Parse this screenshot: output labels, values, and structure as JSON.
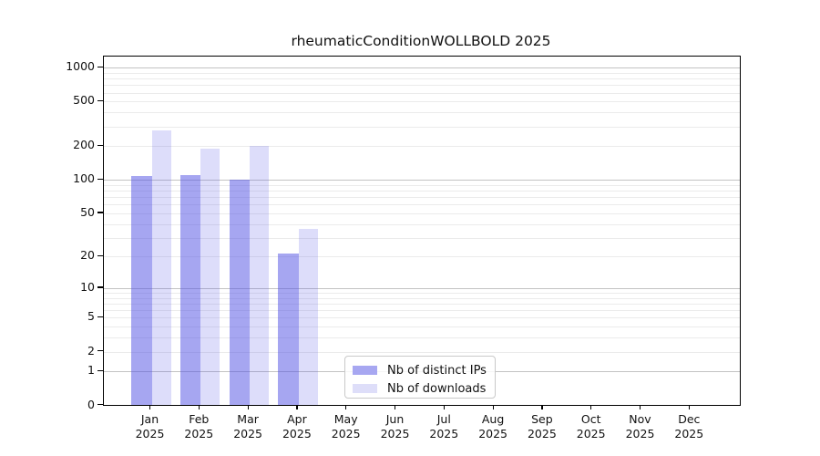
{
  "title": "rheumaticConditionWOLLBOLD 2025",
  "chart_data": {
    "type": "bar",
    "title": "rheumaticConditionWOLLBOLD 2025",
    "categories": [
      "Jan",
      "Feb",
      "Mar",
      "Apr",
      "May",
      "Jun",
      "Jul",
      "Aug",
      "Sep",
      "Oct",
      "Nov",
      "Dec"
    ],
    "category_year": "2025",
    "series": [
      {
        "name": "Nb of distinct IPs",
        "color": "#a7a7f1",
        "fill": "rgba(85,85,229,0.52)",
        "values": [
          108,
          110,
          100,
          21,
          0,
          0,
          0,
          0,
          0,
          0,
          0,
          0
        ]
      },
      {
        "name": "Nb of downloads",
        "color": "#dedef9",
        "fill": "rgba(85,85,229,0.20)",
        "values": [
          275,
          190,
          200,
          36,
          0,
          0,
          0,
          0,
          0,
          0,
          0,
          0
        ]
      }
    ],
    "y_ticks": [
      1000,
      500,
      200,
      100,
      50,
      20,
      10,
      5,
      2,
      1,
      0
    ],
    "scale": "log1p",
    "ylim": [
      0,
      1265
    ],
    "xlabel": "",
    "ylabel": "",
    "grid": true,
    "grid_major_color": "#c3c3c3",
    "grid_minor_color": "#ebebeb",
    "legend_position": "lower center",
    "legend_labels": [
      "Nb of distinct IPs",
      "Nb of downloads"
    ]
  }
}
